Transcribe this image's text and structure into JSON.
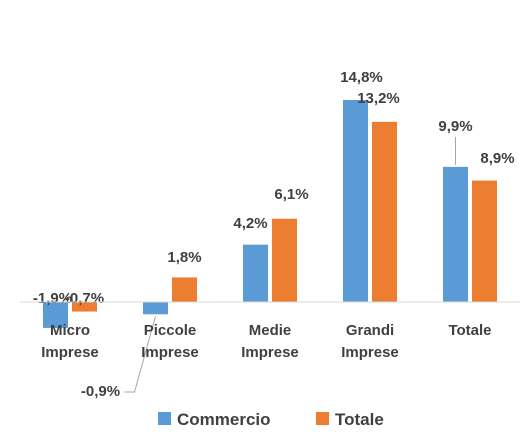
{
  "chart_data": {
    "type": "bar",
    "categories": [
      [
        "Micro",
        "Imprese"
      ],
      [
        "Piccole",
        "Imprese"
      ],
      [
        "Medie",
        "Imprese"
      ],
      [
        "Grandi",
        "Imprese"
      ],
      [
        "Totale"
      ]
    ],
    "series": [
      {
        "name": "Commercio",
        "color": "#5B9BD5",
        "values": [
          -1.9,
          -0.9,
          4.2,
          14.8,
          9.9
        ],
        "labels": [
          "-1,9%",
          "-0,9%",
          "4,2%",
          "14,8%",
          "9,9%"
        ]
      },
      {
        "name": "Totale",
        "color": "#ED7D31",
        "values": [
          -0.7,
          1.8,
          6.1,
          13.2,
          8.9
        ],
        "labels": [
          "-0,7%",
          "1,8%",
          "6,1%",
          "13,2%",
          "8,9%"
        ]
      }
    ],
    "title": "",
    "xlabel": "",
    "ylabel": "",
    "ylim": [
      -2,
      16
    ],
    "grid": false,
    "legend": "bottom",
    "axis_color": "#D9D9D9",
    "text_color": "#404040"
  }
}
